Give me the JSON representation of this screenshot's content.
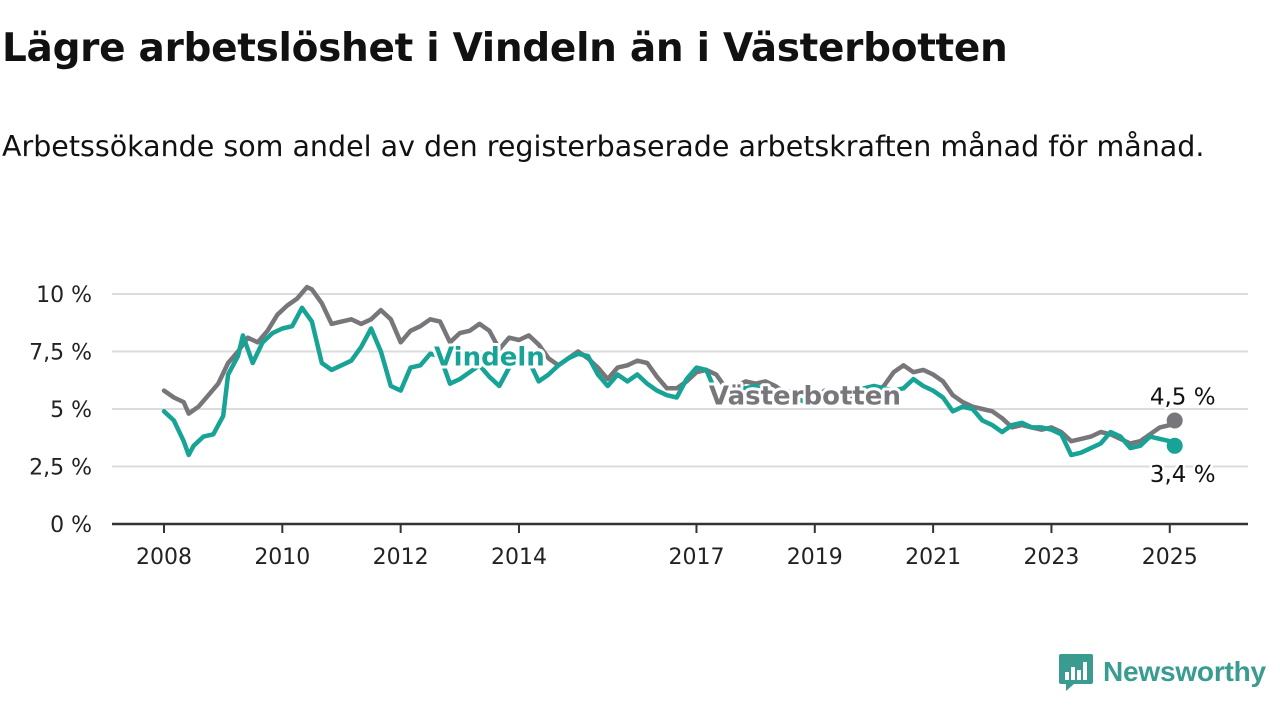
{
  "header": {
    "title": "Lägre arbetslöshet i Vindeln än i Västerbotten",
    "subtitle": "Arbetssökande som andel av den registerbaserade arbetskraften månad för månad."
  },
  "brand": {
    "name": "Newsworthy",
    "logo_icon": "newsworthy-logo-icon",
    "color": "#3a9b91"
  },
  "chart_data": {
    "type": "line",
    "title": "Lägre arbetslöshet i Vindeln än i Västerbotten",
    "subtitle": "Arbetssökande som andel av den registerbaserade arbetskraften månad för månad.",
    "xlabel": "",
    "ylabel": "",
    "x_range": [
      "2008-01",
      "2025-12"
    ],
    "ylim": [
      0,
      10.5
    ],
    "grid": true,
    "legend": "inline labels",
    "x_ticks": [
      {
        "value": "2008-01",
        "label": "2008"
      },
      {
        "value": "2010-01",
        "label": "2010"
      },
      {
        "value": "2012-01",
        "label": "2012"
      },
      {
        "value": "2014-01",
        "label": "2014"
      },
      {
        "value": "2017-01",
        "label": "2017"
      },
      {
        "value": "2019-01",
        "label": "2019"
      },
      {
        "value": "2021-01",
        "label": "2021"
      },
      {
        "value": "2023-01",
        "label": "2023"
      },
      {
        "value": "2025-01",
        "label": "2025"
      }
    ],
    "y_ticks": [
      {
        "value": 0,
        "label": "0 %"
      },
      {
        "value": 2.5,
        "label": "2,5 %"
      },
      {
        "value": 5,
        "label": "5 %"
      },
      {
        "value": 7.5,
        "label": "7,5 %"
      },
      {
        "value": 10,
        "label": "10 %"
      }
    ],
    "series": [
      {
        "name": "Västerbotten",
        "color": "#77767a",
        "label_at": [
          "2018-11",
          5.2
        ],
        "end_label": "4,5 %",
        "points": [
          [
            "2008-01",
            5.8
          ],
          [
            "2008-03",
            5.5
          ],
          [
            "2008-05",
            5.3
          ],
          [
            "2008-06",
            4.8
          ],
          [
            "2008-08",
            5.1
          ],
          [
            "2008-10",
            5.6
          ],
          [
            "2008-12",
            6.1
          ],
          [
            "2009-02",
            7.0
          ],
          [
            "2009-04",
            7.5
          ],
          [
            "2009-06",
            8.1
          ],
          [
            "2009-08",
            7.9
          ],
          [
            "2009-10",
            8.4
          ],
          [
            "2009-12",
            9.1
          ],
          [
            "2010-02",
            9.5
          ],
          [
            "2010-04",
            9.8
          ],
          [
            "2010-06",
            10.3
          ],
          [
            "2010-07",
            10.2
          ],
          [
            "2010-09",
            9.6
          ],
          [
            "2010-11",
            8.7
          ],
          [
            "2011-01",
            8.8
          ],
          [
            "2011-03",
            8.9
          ],
          [
            "2011-05",
            8.7
          ],
          [
            "2011-07",
            8.9
          ],
          [
            "2011-09",
            9.3
          ],
          [
            "2011-11",
            8.9
          ],
          [
            "2012-01",
            7.9
          ],
          [
            "2012-03",
            8.4
          ],
          [
            "2012-05",
            8.6
          ],
          [
            "2012-07",
            8.9
          ],
          [
            "2012-09",
            8.8
          ],
          [
            "2012-11",
            7.9
          ],
          [
            "2013-01",
            8.3
          ],
          [
            "2013-03",
            8.4
          ],
          [
            "2013-05",
            8.7
          ],
          [
            "2013-07",
            8.4
          ],
          [
            "2013-09",
            7.6
          ],
          [
            "2013-11",
            8.1
          ],
          [
            "2014-01",
            8.0
          ],
          [
            "2014-03",
            8.2
          ],
          [
            "2014-05",
            7.8
          ],
          [
            "2014-07",
            7.2
          ],
          [
            "2014-09",
            6.9
          ],
          [
            "2014-11",
            7.2
          ],
          [
            "2015-01",
            7.5
          ],
          [
            "2015-03",
            7.2
          ],
          [
            "2015-05",
            6.8
          ],
          [
            "2015-07",
            6.3
          ],
          [
            "2015-09",
            6.8
          ],
          [
            "2015-11",
            6.9
          ],
          [
            "2016-01",
            7.1
          ],
          [
            "2016-03",
            7.0
          ],
          [
            "2016-05",
            6.4
          ],
          [
            "2016-07",
            5.9
          ],
          [
            "2016-09",
            5.9
          ],
          [
            "2016-11",
            6.2
          ],
          [
            "2017-01",
            6.6
          ],
          [
            "2017-03",
            6.7
          ],
          [
            "2017-05",
            6.5
          ],
          [
            "2017-07",
            5.9
          ],
          [
            "2017-09",
            6.0
          ],
          [
            "2017-11",
            6.2
          ],
          [
            "2018-01",
            6.1
          ],
          [
            "2018-03",
            6.2
          ],
          [
            "2018-05",
            6.0
          ],
          [
            "2018-07",
            5.7
          ],
          [
            "2018-09",
            5.8
          ],
          [
            "2018-11",
            5.6
          ],
          [
            "2019-01",
            5.5
          ],
          [
            "2019-03",
            5.8
          ],
          [
            "2019-05",
            5.7
          ],
          [
            "2019-07",
            5.4
          ],
          [
            "2019-09",
            5.6
          ],
          [
            "2019-11",
            5.8
          ],
          [
            "2020-01",
            5.7
          ],
          [
            "2020-03",
            6.0
          ],
          [
            "2020-05",
            6.6
          ],
          [
            "2020-07",
            6.9
          ],
          [
            "2020-09",
            6.6
          ],
          [
            "2020-11",
            6.7
          ],
          [
            "2021-01",
            6.5
          ],
          [
            "2021-03",
            6.2
          ],
          [
            "2021-05",
            5.6
          ],
          [
            "2021-07",
            5.3
          ],
          [
            "2021-09",
            5.1
          ],
          [
            "2021-11",
            5.0
          ],
          [
            "2022-01",
            4.9
          ],
          [
            "2022-03",
            4.6
          ],
          [
            "2022-05",
            4.2
          ],
          [
            "2022-07",
            4.3
          ],
          [
            "2022-09",
            4.2
          ],
          [
            "2022-11",
            4.1
          ],
          [
            "2023-01",
            4.2
          ],
          [
            "2023-03",
            4.0
          ],
          [
            "2023-05",
            3.6
          ],
          [
            "2023-07",
            3.7
          ],
          [
            "2023-09",
            3.8
          ],
          [
            "2023-11",
            4.0
          ],
          [
            "2024-01",
            3.9
          ],
          [
            "2024-03",
            3.7
          ],
          [
            "2024-05",
            3.5
          ],
          [
            "2024-07",
            3.6
          ],
          [
            "2024-09",
            3.9
          ],
          [
            "2024-11",
            4.2
          ],
          [
            "2025-01",
            4.3
          ],
          [
            "2025-02",
            4.5
          ]
        ]
      },
      {
        "name": "Vindeln",
        "color": "#17a395",
        "label_at": [
          "2013-07",
          6.9
        ],
        "end_label": "3,4 %",
        "points": [
          [
            "2008-01",
            4.9
          ],
          [
            "2008-03",
            4.5
          ],
          [
            "2008-05",
            3.6
          ],
          [
            "2008-06",
            3.0
          ],
          [
            "2008-07",
            3.4
          ],
          [
            "2008-09",
            3.8
          ],
          [
            "2008-11",
            3.9
          ],
          [
            "2009-01",
            4.7
          ],
          [
            "2009-02",
            6.5
          ],
          [
            "2009-04",
            7.3
          ],
          [
            "2009-05",
            8.2
          ],
          [
            "2009-07",
            7.0
          ],
          [
            "2009-09",
            7.9
          ],
          [
            "2009-11",
            8.3
          ],
          [
            "2010-01",
            8.5
          ],
          [
            "2010-03",
            8.6
          ],
          [
            "2010-05",
            9.4
          ],
          [
            "2010-07",
            8.8
          ],
          [
            "2010-09",
            7.0
          ],
          [
            "2010-11",
            6.7
          ],
          [
            "2011-01",
            6.9
          ],
          [
            "2011-03",
            7.1
          ],
          [
            "2011-05",
            7.7
          ],
          [
            "2011-07",
            8.5
          ],
          [
            "2011-09",
            7.5
          ],
          [
            "2011-11",
            6.0
          ],
          [
            "2012-01",
            5.8
          ],
          [
            "2012-03",
            6.8
          ],
          [
            "2012-05",
            6.9
          ],
          [
            "2012-07",
            7.4
          ],
          [
            "2012-09",
            7.3
          ],
          [
            "2012-11",
            6.1
          ],
          [
            "2013-01",
            6.3
          ],
          [
            "2013-03",
            6.6
          ],
          [
            "2013-05",
            6.9
          ],
          [
            "2013-07",
            6.4
          ],
          [
            "2013-09",
            6.0
          ],
          [
            "2013-11",
            6.8
          ],
          [
            "2014-01",
            7.3
          ],
          [
            "2014-03",
            7.1
          ],
          [
            "2014-05",
            6.2
          ],
          [
            "2014-07",
            6.5
          ],
          [
            "2014-09",
            6.9
          ],
          [
            "2014-11",
            7.2
          ],
          [
            "2015-01",
            7.4
          ],
          [
            "2015-03",
            7.3
          ],
          [
            "2015-05",
            6.5
          ],
          [
            "2015-07",
            6.0
          ],
          [
            "2015-09",
            6.5
          ],
          [
            "2015-11",
            6.2
          ],
          [
            "2016-01",
            6.5
          ],
          [
            "2016-03",
            6.1
          ],
          [
            "2016-05",
            5.8
          ],
          [
            "2016-07",
            5.6
          ],
          [
            "2016-09",
            5.5
          ],
          [
            "2016-11",
            6.3
          ],
          [
            "2017-01",
            6.8
          ],
          [
            "2017-03",
            6.7
          ],
          [
            "2017-05",
            5.7
          ],
          [
            "2017-07",
            5.8
          ],
          [
            "2017-09",
            6.0
          ],
          [
            "2017-11",
            5.9
          ],
          [
            "2018-01",
            6.0
          ],
          [
            "2018-03",
            5.8
          ],
          [
            "2018-05",
            5.6
          ],
          [
            "2018-07",
            5.4
          ],
          [
            "2018-09",
            5.5
          ],
          [
            "2018-11",
            5.3
          ],
          [
            "2019-01",
            5.5
          ],
          [
            "2019-03",
            5.7
          ],
          [
            "2019-05",
            5.6
          ],
          [
            "2019-07",
            5.5
          ],
          [
            "2019-09",
            5.7
          ],
          [
            "2019-11",
            5.9
          ],
          [
            "2020-01",
            6.0
          ],
          [
            "2020-03",
            5.9
          ],
          [
            "2020-05",
            5.8
          ],
          [
            "2020-07",
            5.9
          ],
          [
            "2020-09",
            6.3
          ],
          [
            "2020-11",
            6.0
          ],
          [
            "2021-01",
            5.8
          ],
          [
            "2021-03",
            5.5
          ],
          [
            "2021-05",
            4.9
          ],
          [
            "2021-07",
            5.1
          ],
          [
            "2021-09",
            5.0
          ],
          [
            "2021-11",
            4.5
          ],
          [
            "2022-01",
            4.3
          ],
          [
            "2022-03",
            4.0
          ],
          [
            "2022-05",
            4.3
          ],
          [
            "2022-07",
            4.4
          ],
          [
            "2022-09",
            4.2
          ],
          [
            "2022-11",
            4.2
          ],
          [
            "2023-01",
            4.1
          ],
          [
            "2023-03",
            3.9
          ],
          [
            "2023-05",
            3.0
          ],
          [
            "2023-07",
            3.1
          ],
          [
            "2023-09",
            3.3
          ],
          [
            "2023-11",
            3.5
          ],
          [
            "2024-01",
            4.0
          ],
          [
            "2024-03",
            3.8
          ],
          [
            "2024-05",
            3.3
          ],
          [
            "2024-07",
            3.4
          ],
          [
            "2024-09",
            3.8
          ],
          [
            "2024-11",
            3.7
          ],
          [
            "2025-01",
            3.6
          ],
          [
            "2025-02",
            3.4
          ]
        ]
      }
    ]
  }
}
